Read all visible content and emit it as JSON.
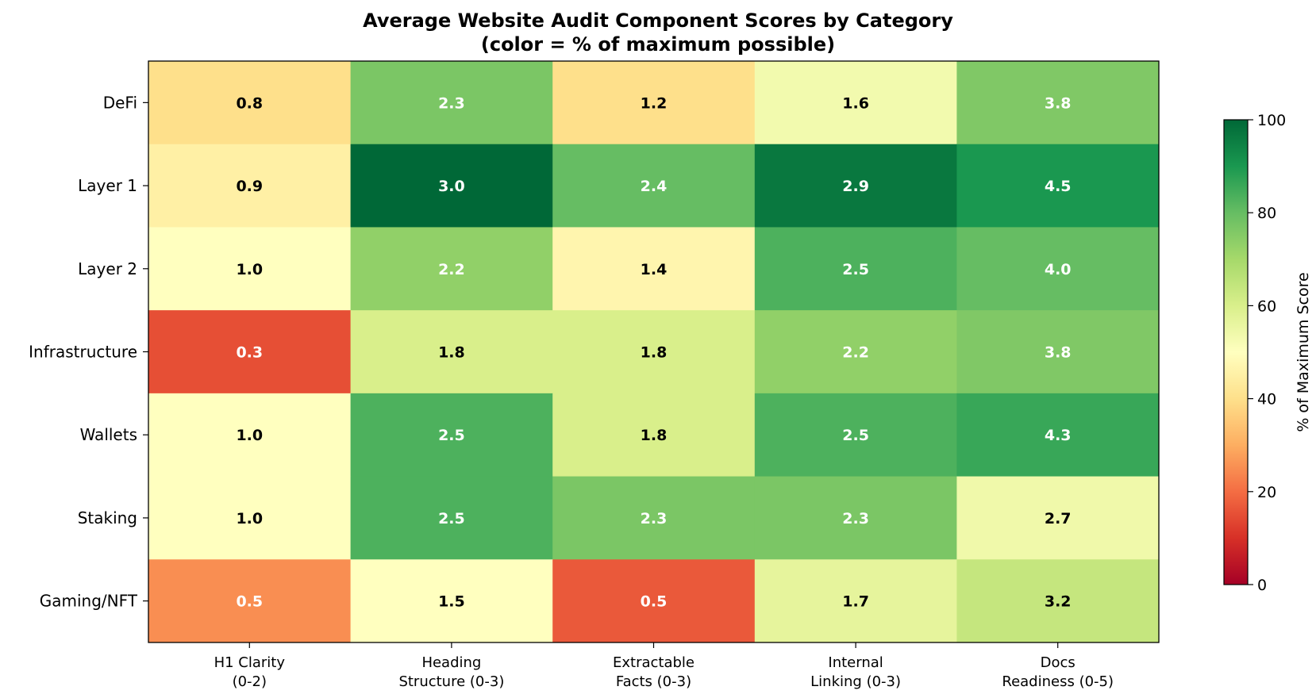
{
  "chart_data": {
    "type": "heatmap",
    "title": "Average Website Audit Component Scores by Category",
    "subtitle": "(color = % of maximum possible)",
    "rows": [
      "DeFi",
      "Layer 1",
      "Layer 2",
      "Infrastructure",
      "Wallets",
      "Staking",
      "Gaming/NFT"
    ],
    "columns": [
      {
        "line1": "H1 Clarity",
        "line2": "(0-2)",
        "max": 2
      },
      {
        "line1": "Heading",
        "line2": "Structure (0-3)",
        "max": 3
      },
      {
        "line1": "Extractable",
        "line2": "Facts (0-3)",
        "max": 3
      },
      {
        "line1": "Internal",
        "line2": "Linking (0-3)",
        "max": 3
      },
      {
        "line1": "Docs",
        "line2": "Readiness (0-5)",
        "max": 5
      }
    ],
    "values": [
      [
        "0.8",
        "2.3",
        "1.2",
        "1.6",
        "3.8"
      ],
      [
        "0.9",
        "3.0",
        "2.4",
        "2.9",
        "4.5"
      ],
      [
        "1.0",
        "2.2",
        "1.4",
        "2.5",
        "4.0"
      ],
      [
        "0.3",
        "1.8",
        "1.8",
        "2.2",
        "3.8"
      ],
      [
        "1.0",
        "2.5",
        "1.8",
        "2.5",
        "4.3"
      ],
      [
        "1.0",
        "2.5",
        "2.3",
        "2.3",
        "2.7"
      ],
      [
        "0.5",
        "1.5",
        "0.5",
        "1.7",
        "3.2"
      ]
    ],
    "colorbar": {
      "label": "% of Maximum Score",
      "range": [
        0,
        100
      ],
      "ticks": [
        "0",
        "20",
        "40",
        "60",
        "80",
        "100"
      ],
      "colormap": "RdYlGn"
    }
  }
}
